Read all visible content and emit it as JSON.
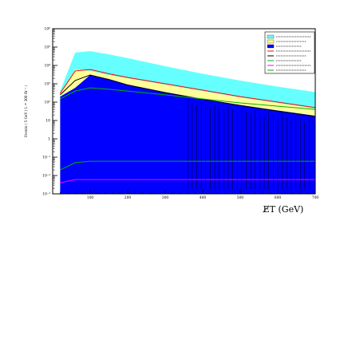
{
  "chart_data": {
    "type": "area",
    "title": "",
    "xlabel": "E̸T (GeV)",
    "ylabel": "Events / 5 GeV ( L = 300 fb⁻¹ )",
    "xlim": [
      0,
      700
    ],
    "ylim": [
      0.001,
      1000000
    ],
    "yscale": "log",
    "x_ticks": [
      "100",
      "200",
      "300",
      "400",
      "500",
      "600",
      "700"
    ],
    "y_ticks": [
      "10⁻³",
      "10⁻²",
      "10⁻¹",
      "1",
      "10",
      "10²",
      "10³",
      "10⁴",
      "10⁵",
      "10⁶"
    ],
    "grid": false,
    "legend_position": "top-right",
    "colors": {
      "cyan": "#66ffff",
      "yellow": "#ffff99",
      "blue": "#0000ff",
      "green": "#00b000",
      "magenta": "#ff00ff",
      "red": "#ff0000",
      "black": "#000000"
    },
    "series": [
      {
        "kind": "area",
        "color_key": "cyan",
        "x": [
          20,
          60,
          100,
          150,
          200,
          300,
          400,
          500,
          600,
          700
        ],
        "y": [
          400,
          50000,
          60000,
          40000,
          25000,
          9000,
          3500,
          1500,
          700,
          350
        ]
      },
      {
        "kind": "area",
        "color_key": "yellow",
        "x": [
          20,
          60,
          100,
          150,
          200,
          300,
          400,
          500,
          600,
          700
        ],
        "y": [
          300,
          6000,
          5000,
          3000,
          2000,
          900,
          400,
          180,
          90,
          45
        ]
      },
      {
        "kind": "area",
        "color_key": "blue",
        "x": [
          20,
          60,
          100,
          150,
          200,
          300,
          400,
          500,
          600,
          700
        ],
        "y": [
          200,
          600,
          3000,
          1800,
          900,
          350,
          150,
          70,
          35,
          18
        ]
      },
      {
        "kind": "line",
        "color_key": "red",
        "x": [
          20,
          60,
          100,
          150,
          200,
          300,
          400,
          500,
          600,
          700
        ],
        "y": [
          300,
          5000,
          6000,
          3500,
          2200,
          1000,
          450,
          200,
          100,
          50
        ]
      },
      {
        "kind": "line",
        "color_key": "black",
        "x": [
          20,
          60,
          100,
          150,
          200,
          300,
          400,
          500,
          600,
          700
        ],
        "y": [
          250,
          1500,
          3000,
          1700,
          850,
          330,
          140,
          65,
          32,
          16
        ]
      },
      {
        "kind": "line",
        "color_key": "green",
        "x": [
          20,
          60,
          100,
          150,
          200,
          300,
          400,
          500,
          600,
          700
        ],
        "y": [
          150,
          400,
          600,
          500,
          400,
          250,
          150,
          90,
          60,
          40
        ]
      },
      {
        "kind": "line",
        "color_key": "green",
        "x": [
          20,
          60,
          100,
          150,
          200,
          300,
          400,
          500,
          600,
          700
        ],
        "y": [
          0.02,
          0.05,
          0.06,
          0.06,
          0.06,
          0.06,
          0.06,
          0.06,
          0.06,
          0.06
        ]
      },
      {
        "kind": "line",
        "color_key": "magenta",
        "x": [
          20,
          60,
          100,
          150,
          200,
          300,
          400,
          500,
          600,
          700
        ],
        "y": [
          0.004,
          0.006,
          0.006,
          0.006,
          0.006,
          0.006,
          0.006,
          0.006,
          0.006,
          0.006
        ]
      }
    ]
  }
}
